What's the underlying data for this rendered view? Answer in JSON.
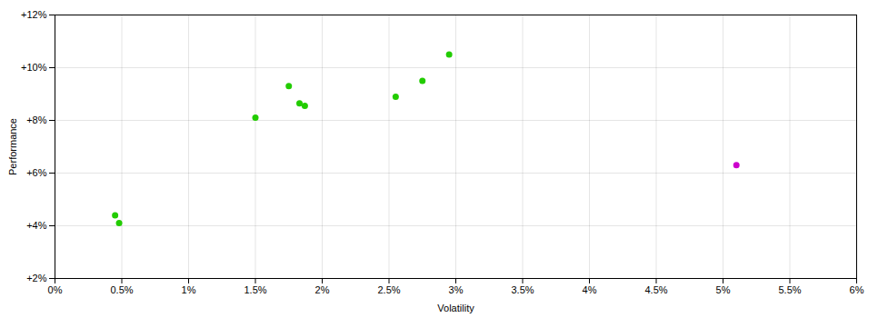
{
  "chart_data": {
    "type": "scatter",
    "xlabel": "Volatility",
    "ylabel": "Performance",
    "series": [
      {
        "color": "#22cc00",
        "x": [
          0.0045,
          0.0048,
          0.015,
          0.0175,
          0.0183,
          0.0187,
          0.0255,
          0.0275,
          0.0295
        ],
        "y": [
          0.044,
          0.041,
          0.081,
          0.093,
          0.0865,
          0.0855,
          0.089,
          0.095,
          0.105
        ]
      },
      {
        "color": "#cc00cc",
        "x": [
          0.051
        ],
        "y": [
          0.063
        ]
      }
    ],
    "xlim": [
      0.0,
      0.06
    ],
    "ylim": [
      0.02,
      0.12
    ],
    "xticks": [
      {
        "value": 0.0,
        "label": "0%"
      },
      {
        "value": 0.005,
        "label": "0.5%"
      },
      {
        "value": 0.01,
        "label": "1%"
      },
      {
        "value": 0.015,
        "label": "1.5%"
      },
      {
        "value": 0.02,
        "label": "2%"
      },
      {
        "value": 0.025,
        "label": "2.5%"
      },
      {
        "value": 0.03,
        "label": "3%"
      },
      {
        "value": 0.035,
        "label": "3.5%"
      },
      {
        "value": 0.04,
        "label": "4%"
      },
      {
        "value": 0.045,
        "label": "4.5%"
      },
      {
        "value": 0.05,
        "label": "5%"
      },
      {
        "value": 0.055,
        "label": "5.5%"
      },
      {
        "value": 0.06,
        "label": "6%"
      }
    ],
    "yticks": [
      {
        "value": 0.02,
        "label": "+2%"
      },
      {
        "value": 0.04,
        "label": "+4%"
      },
      {
        "value": 0.06,
        "label": "+6%"
      },
      {
        "value": 0.08,
        "label": "+8%"
      },
      {
        "value": 0.1,
        "label": "+10%"
      },
      {
        "value": 0.12,
        "label": "+12%"
      }
    ],
    "grid": true
  }
}
